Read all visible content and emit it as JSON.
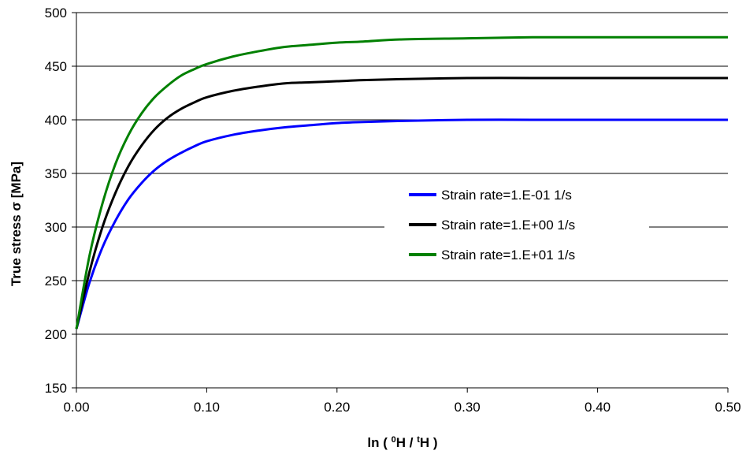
{
  "chart_data": {
    "type": "line",
    "title": "",
    "xlabel": {
      "prefix": "ln ( ",
      "num_sup": "0",
      "num_base": "H / ",
      "den_sup": "t",
      "den_base": "H )"
    },
    "ylabel": "True stress σ [MPa]",
    "xlim": [
      0,
      0.5
    ],
    "ylim": [
      150,
      500
    ],
    "x_ticks": [
      0,
      0.1,
      0.2,
      0.3,
      0.4,
      0.5
    ],
    "x_tick_labels": [
      "0.00",
      "0.10",
      "0.20",
      "0.30",
      "0.40",
      "0.50"
    ],
    "y_ticks": [
      150,
      200,
      250,
      300,
      350,
      400,
      450,
      500
    ],
    "y_tick_labels": [
      "150",
      "200",
      "250",
      "300",
      "350",
      "400",
      "450",
      "500"
    ],
    "grid": "horizontal",
    "legend_position": "center-right",
    "x": [
      0,
      0.01,
      0.02,
      0.03,
      0.04,
      0.05,
      0.06,
      0.07,
      0.08,
      0.09,
      0.1,
      0.12,
      0.14,
      0.16,
      0.18,
      0.2,
      0.22,
      0.25,
      0.3,
      0.35,
      0.4,
      0.45,
      0.5
    ],
    "series": [
      {
        "name": "Strain rate=1.E-01 1/s",
        "color": "#0000ff",
        "values": [
          205,
          248,
          281,
          306,
          326,
          341,
          353,
          362,
          369,
          375,
          380,
          386,
          390,
          393,
          395,
          397,
          398,
          399,
          400,
          400,
          400,
          400,
          400
        ]
      },
      {
        "name": "Strain rate=1.E+00 1/s",
        "color": "#000000",
        "values": [
          205,
          258,
          300,
          332,
          357,
          376,
          391,
          402,
          410,
          416,
          421,
          427,
          431,
          434,
          435,
          436,
          437,
          438,
          439,
          439,
          439,
          439,
          439
        ]
      },
      {
        "name": "Strain rate=1.E+01 1/s",
        "color": "#008000",
        "values": [
          205,
          273,
          322,
          359,
          386,
          406,
          421,
          432,
          441,
          447,
          452,
          459,
          464,
          468,
          470,
          472,
          473,
          475,
          476,
          477,
          477,
          477,
          477
        ]
      }
    ]
  }
}
